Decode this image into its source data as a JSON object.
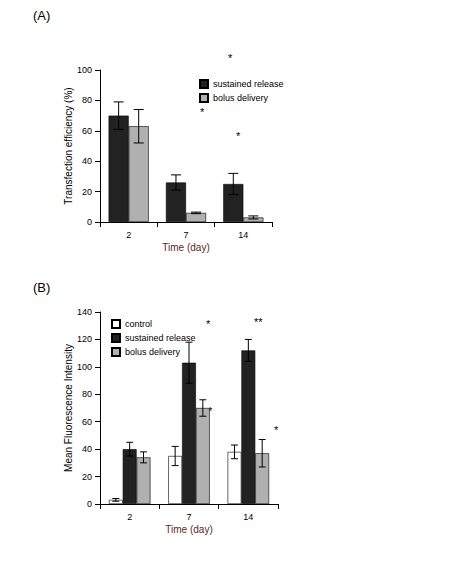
{
  "chart_data": [
    {
      "type": "bar",
      "title": "(A)",
      "x_label": "Time (day)",
      "y_label": "Transfection efficiency (%)",
      "categories": [
        "2",
        "7",
        "14"
      ],
      "series": [
        {
          "name": "sustained release",
          "color": "#222222",
          "values": [
            70,
            26,
            25
          ],
          "errors": [
            9,
            5,
            7
          ]
        },
        {
          "name": "bolus delivery",
          "color": "#b0b0b0",
          "values": [
            63,
            6,
            3
          ],
          "errors": [
            11,
            0.5,
            1
          ]
        }
      ],
      "ylim": [
        0,
        100
      ],
      "yticks": [
        0,
        20,
        40,
        60,
        80,
        100
      ],
      "legend": "upper right",
      "annotations": [
        "*",
        "*",
        "*"
      ]
    },
    {
      "type": "bar",
      "title": "(B)",
      "x_label": "Time (day)",
      "y_label": "Mean Fluorescence Intensity",
      "categories": [
        "2",
        "7",
        "14"
      ],
      "series": [
        {
          "name": "control",
          "color": "#ffffff",
          "values": [
            3,
            35,
            38
          ],
          "errors": [
            1,
            7,
            5
          ]
        },
        {
          "name": "sustained release",
          "color": "#222222",
          "values": [
            40,
            103,
            112
          ],
          "errors": [
            5,
            15,
            8
          ]
        },
        {
          "name": "bolus delivery",
          "color": "#b0b0b0",
          "values": [
            34,
            70,
            37
          ],
          "errors": [
            4,
            6,
            10
          ]
        }
      ],
      "ylim": [
        0,
        140
      ],
      "yticks": [
        0,
        20,
        40,
        60,
        80,
        100,
        120,
        140
      ],
      "legend": "upper left",
      "annotations": [
        "*",
        "**",
        "*",
        "*"
      ]
    }
  ]
}
